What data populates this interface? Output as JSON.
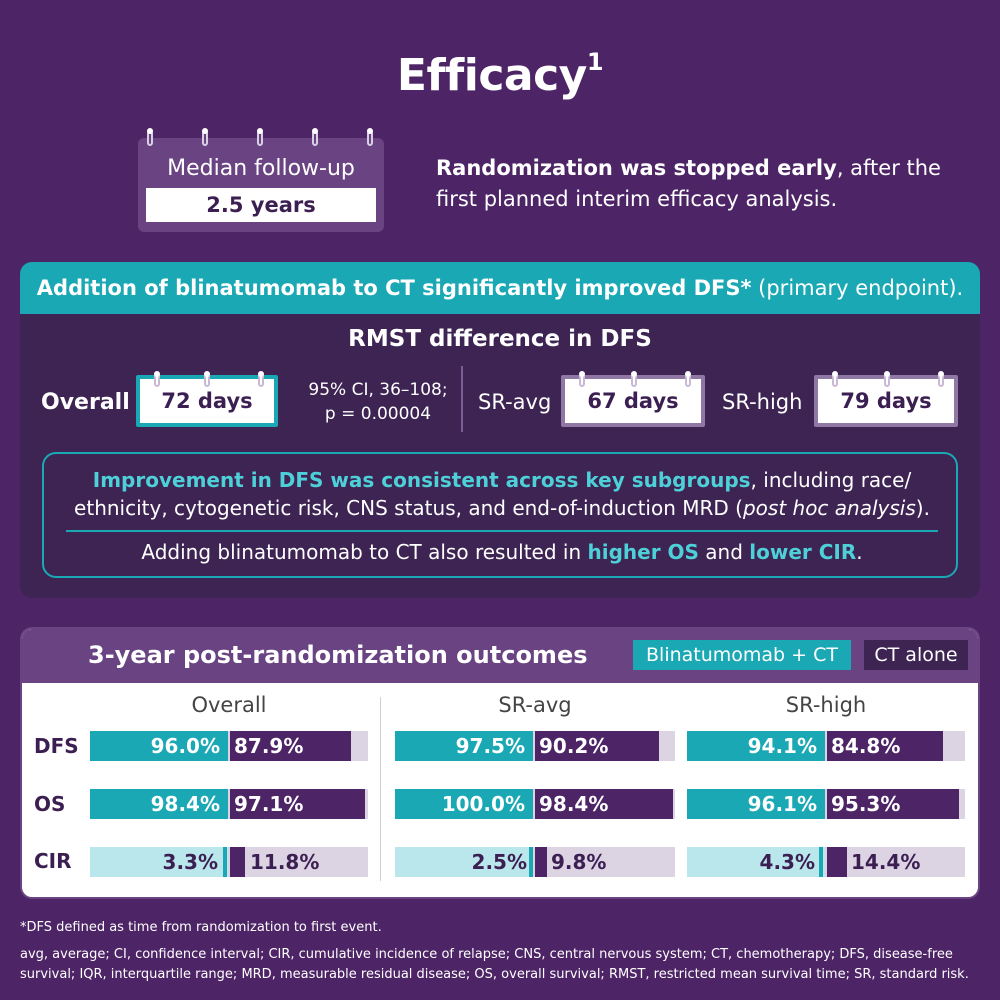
{
  "title": "Efficacy",
  "title_sup": "1",
  "followup": {
    "label": "Median follow-up",
    "value": "2.5 years"
  },
  "randomization": {
    "bold": "Randomization was stopped early",
    "rest": ", after the first planned interim efficacy analysis."
  },
  "dfs_panel": {
    "header_bold": "Addition of blinatumomab to CT significantly improved DFS*",
    "header_rest": " (primary endpoint).",
    "rmst_title": "RMST difference in DFS",
    "overall_label": "Overall",
    "overall_value": "72 days",
    "ci_line1": "95% CI, 36–108;",
    "ci_line2": "p = 0.00004",
    "sravg_label": "SR-avg",
    "sravg_value": "67 days",
    "srhigh_label": "SR-high",
    "srhigh_value": "79 days",
    "consistent_bold": "Improvement in DFS was consistent across key subgroups",
    "consistent_rest": ", including race/ ethnicity, cytogenetic risk, CNS status, and end-of-induction MRD (",
    "consistent_italic": "post hoc analysis",
    "consistent_end": ").",
    "os_prefix": "Adding blinatumomab to CT also resulted in ",
    "os_bold1": "higher OS",
    "os_mid": " and ",
    "os_bold2": "lower CIR",
    "os_end": "."
  },
  "outcomes": {
    "title": "3-year post-randomization outcomes",
    "legend_blin": "Blinatumomab + CT",
    "legend_ct": "CT alone",
    "columns": [
      "Overall",
      "SR-avg",
      "SR-high"
    ],
    "rows": [
      {
        "label": "DFS",
        "blin": [
          "96.0%",
          "97.5%",
          "94.1%"
        ],
        "ct": [
          "87.9%",
          "90.2%",
          "84.8%"
        ]
      },
      {
        "label": "OS",
        "blin": [
          "98.4%",
          "100.0%",
          "96.1%"
        ],
        "ct": [
          "97.1%",
          "98.4%",
          "95.3%"
        ]
      },
      {
        "label": "CIR",
        "blin": [
          "3.3%",
          "2.5%",
          "4.3%"
        ],
        "ct": [
          "11.8%",
          "9.8%",
          "14.4%"
        ]
      }
    ]
  },
  "colors": {
    "background": "#4d2466",
    "teal": "#1aa8b4",
    "purple": "#6a4382"
  },
  "footnote1": "*DFS defined as time from randomization to first event.",
  "footnote2": "avg, average; CI, confidence interval; CIR, cumulative incidence of relapse; CNS, central nervous system; CT, chemotherapy; DFS, disease-free survival; IQR, interquartile range; MRD, measurable residual disease; OS, overall survival; RMST, restricted mean survival time; SR, standard risk."
}
